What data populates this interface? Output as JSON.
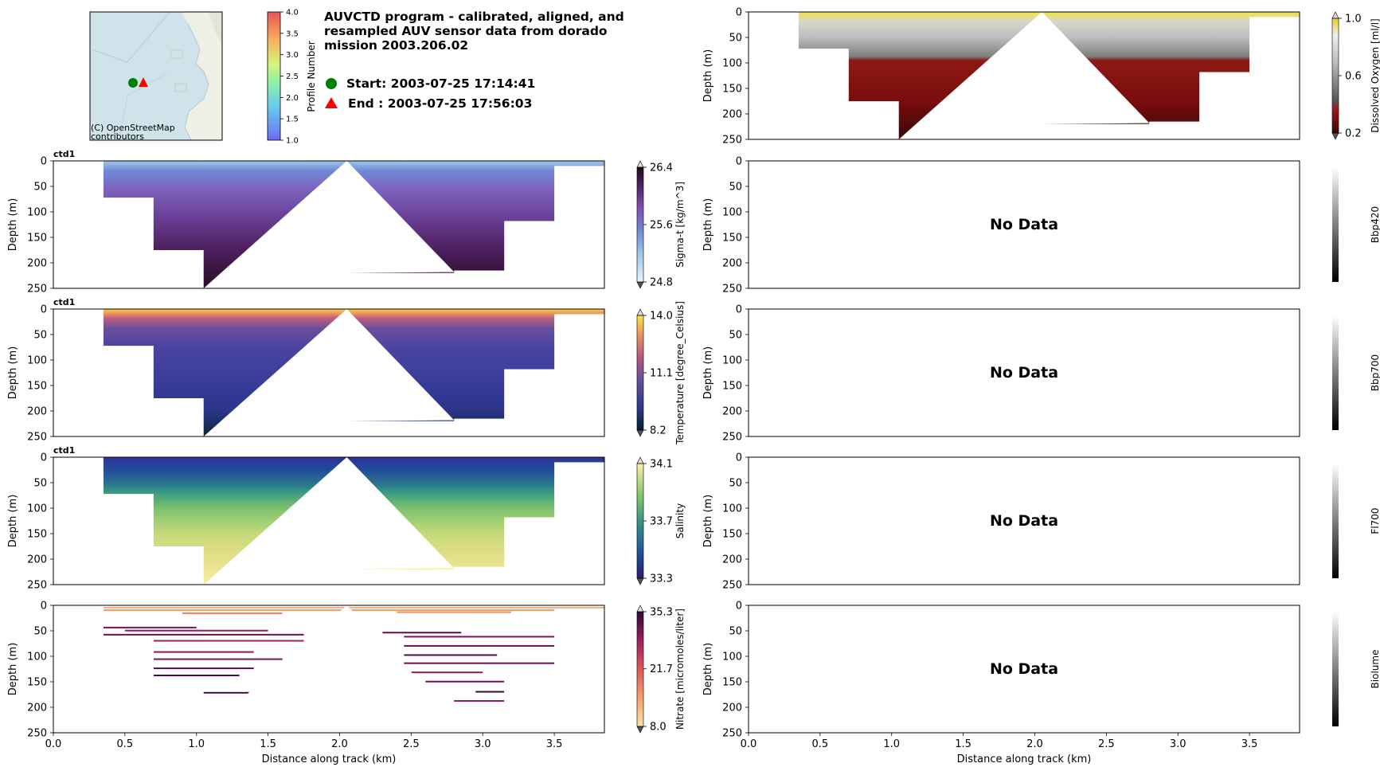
{
  "header": {
    "title": "AUVCTD program - calibrated, aligned, and resampled AUV sensor data from dorado mission 2003.206.02",
    "start_label": "Start: 2003-07-25 17:14:41",
    "end_label": "End  : 2003-07-25 17:56:03",
    "start_color": "#008000",
    "end_color": "#ff0000"
  },
  "map": {
    "attribution_line1": "(C) OpenStreetMap",
    "attribution_line2": "contributors",
    "water_color": "#cfe3ea",
    "land_color": "#eef0e6"
  },
  "profile_colorbar": {
    "label": "Profile Number",
    "ticks": [
      "1.0",
      "1.5",
      "2.0",
      "2.5",
      "3.0",
      "3.5",
      "4.0"
    ],
    "min": 1.0,
    "max": 4.0
  },
  "axes_common": {
    "ylabel": "Depth (m)",
    "xlabel": "Distance along track (km)",
    "yticks": [
      "0",
      "50",
      "100",
      "150",
      "200",
      "250"
    ],
    "xticks": [
      "0.0",
      "0.5",
      "1.0",
      "1.5",
      "2.0",
      "2.5",
      "3.0",
      "3.5"
    ],
    "no_data_text": "No Data",
    "sensor_label": "ctd1"
  },
  "chart_data": [
    {
      "type": "heatmap",
      "id": "sigma_t",
      "title": "ctd1",
      "variable": "Sigma-t [kg/m^3]",
      "xlabel": "Distance along track (km)",
      "ylabel": "Depth (m)",
      "xlim": [
        0.0,
        3.85
      ],
      "ylim": [
        250,
        0
      ],
      "cbar_ticks": [
        "24.8",
        "25.6",
        "26.4"
      ],
      "cbar_range": [
        24.8,
        26.4
      ],
      "has_data": true
    },
    {
      "type": "heatmap",
      "id": "temperature",
      "title": "ctd1",
      "variable": "Temperature [degree_Celsius]",
      "xlabel": "Distance along track (km)",
      "ylabel": "Depth (m)",
      "xlim": [
        0.0,
        3.85
      ],
      "ylim": [
        250,
        0
      ],
      "cbar_ticks": [
        "8.2",
        "11.1",
        "14.0"
      ],
      "cbar_range": [
        8.2,
        14.0
      ],
      "has_data": true
    },
    {
      "type": "heatmap",
      "id": "salinity",
      "title": "ctd1",
      "variable": "Salinity",
      "xlabel": "Distance along track (km)",
      "ylabel": "Depth (m)",
      "xlim": [
        0.0,
        3.85
      ],
      "ylim": [
        250,
        0
      ],
      "cbar_ticks": [
        "33.3",
        "33.7",
        "34.1"
      ],
      "cbar_range": [
        33.3,
        34.1
      ],
      "has_data": true
    },
    {
      "type": "heatmap",
      "id": "nitrate",
      "title": "",
      "variable": "Nitrate [micromoles/liter]",
      "xlabel": "Distance along track (km)",
      "ylabel": "Depth (m)",
      "xlim": [
        0.0,
        3.85
      ],
      "ylim": [
        250,
        0
      ],
      "cbar_ticks": [
        "8.0",
        "21.7",
        "35.3"
      ],
      "cbar_range": [
        8.0,
        35.3
      ],
      "has_data": true
    },
    {
      "type": "heatmap",
      "id": "dissolved_oxygen",
      "title": "",
      "variable": "Dissolved Oxygen [ml/l]",
      "xlabel": "Distance along track (km)",
      "ylabel": "Depth (m)",
      "xlim": [
        0.0,
        3.85
      ],
      "ylim": [
        250,
        0
      ],
      "cbar_ticks": [
        "0.2",
        "0.6",
        "1.0"
      ],
      "cbar_range": [
        0.2,
        1.0
      ],
      "has_data": true
    },
    {
      "type": "heatmap",
      "id": "bbp420",
      "title": "",
      "variable": "Bbp420",
      "xlabel": "Distance along track (km)",
      "ylabel": "Depth (m)",
      "xlim": [
        0.0,
        3.85
      ],
      "ylim": [
        250,
        0
      ],
      "cbar_ticks": [],
      "has_data": false
    },
    {
      "type": "heatmap",
      "id": "bbp700",
      "title": "",
      "variable": "Bbp700",
      "xlabel": "Distance along track (km)",
      "ylabel": "Depth (m)",
      "xlim": [
        0.0,
        3.85
      ],
      "ylim": [
        250,
        0
      ],
      "cbar_ticks": [],
      "has_data": false
    },
    {
      "type": "heatmap",
      "id": "fl700",
      "title": "",
      "variable": "Fl700",
      "xlabel": "Distance along track (km)",
      "ylabel": "Depth (m)",
      "xlim": [
        0.0,
        3.85
      ],
      "ylim": [
        250,
        0
      ],
      "cbar_ticks": [],
      "has_data": false
    },
    {
      "type": "heatmap",
      "id": "biolume",
      "title": "",
      "variable": "Biolume",
      "xlabel": "Distance along track (km)",
      "ylabel": "Depth (m)",
      "xlim": [
        0.0,
        3.85
      ],
      "ylim": [
        250,
        0
      ],
      "cbar_ticks": [],
      "has_data": false
    }
  ],
  "survey_profile": {
    "description_units": "distance km / depth m",
    "max_depth_steps": [
      {
        "x_start": 0.35,
        "x_end": 0.7,
        "depth": 72
      },
      {
        "x_start": 0.7,
        "x_end": 1.05,
        "depth": 175
      },
      {
        "x_start": 1.05,
        "x_end": 2.05,
        "depth": 250
      },
      {
        "x_start": 2.05,
        "x_end": 2.8,
        "depth": 220
      },
      {
        "x_start": 2.8,
        "x_end": 3.15,
        "depth": 215
      },
      {
        "x_start": 3.15,
        "x_end": 3.5,
        "depth": 118
      }
    ],
    "data_x_range": [
      0.35,
      3.85
    ],
    "surface_only_x_range": [
      3.5,
      3.85
    ],
    "gap_peak_x": 2.05,
    "gap_left_base": [
      1.05,
      250
    ],
    "gap_right_base": [
      2.8,
      218
    ]
  }
}
